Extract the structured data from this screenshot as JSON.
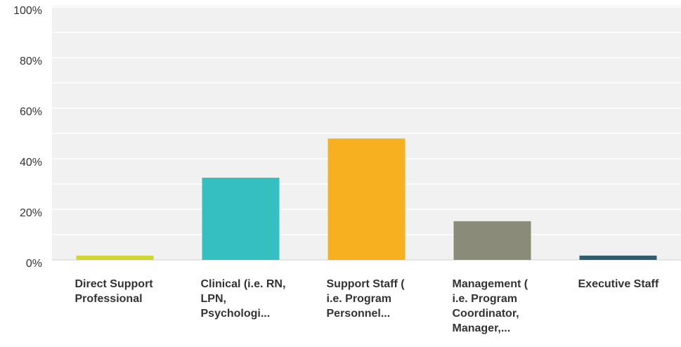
{
  "chart_data": {
    "type": "bar",
    "categories": [
      "Direct Support Professional",
      "Clinical (i.e. RN, LPN, Psychologi...",
      "Support Staff ( i.e. Program Personnel...",
      "Management ( i.e. Program Coordinator, Manager,...",
      "Executive Staff"
    ],
    "values": [
      1.7,
      32.5,
      48,
      15.3,
      1.7
    ],
    "colors": [
      "#d0d62e",
      "#35bfc0",
      "#f7b01f",
      "#8a8b79",
      "#2f5d70"
    ],
    "ylim": [
      0,
      100
    ],
    "yticks": [
      {
        "value": 0,
        "label": "0%"
      },
      {
        "value": 20,
        "label": "20%"
      },
      {
        "value": 40,
        "label": "40%"
      },
      {
        "value": 60,
        "label": "60%"
      },
      {
        "value": 80,
        "label": "80%"
      },
      {
        "value": 100,
        "label": "100%"
      }
    ],
    "minor_yticks": [
      10,
      30,
      50,
      70,
      90
    ],
    "grid": true
  }
}
